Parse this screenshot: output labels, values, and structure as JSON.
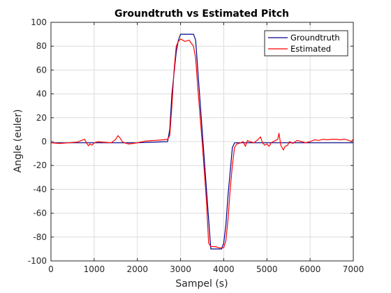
{
  "chart_data": {
    "type": "line",
    "title": "Groundtruth vs Estimated Pitch",
    "xlabel": "Sampel (s)",
    "ylabel": "Angle (euler)",
    "xlim": [
      0,
      7000
    ],
    "ylim": [
      -100,
      100
    ],
    "xticks": [
      0,
      1000,
      2000,
      3000,
      4000,
      5000,
      6000,
      7000
    ],
    "yticks": [
      -100,
      -80,
      -60,
      -40,
      -20,
      0,
      20,
      40,
      60,
      80,
      100
    ],
    "grid": true,
    "legend_position": "top-right",
    "series": [
      {
        "name": "Groundtruth",
        "color": "#00008b",
        "x": [
          0,
          700,
          1000,
          1500,
          2000,
          2700,
          2750,
          2800,
          2900,
          2950,
          3000,
          3300,
          3350,
          3400,
          3500,
          3600,
          3700,
          3950,
          4000,
          4050,
          4100,
          4200,
          4250,
          4300,
          5000,
          6000,
          7000
        ],
        "y": [
          -1,
          -1,
          -1,
          -1,
          -1,
          0,
          10,
          40,
          75,
          85,
          90,
          90,
          85,
          60,
          10,
          -40,
          -90,
          -90,
          -85,
          -70,
          -45,
          -5,
          -1,
          -1,
          -1,
          -1,
          -1
        ]
      },
      {
        "name": "Estimated",
        "color": "#ff0000",
        "x": [
          0,
          200,
          400,
          600,
          780,
          820,
          870,
          900,
          950,
          1000,
          1100,
          1200,
          1400,
          1500,
          1550,
          1600,
          1650,
          1700,
          1800,
          1900,
          2000,
          2200,
          2400,
          2600,
          2700,
          2750,
          2800,
          2850,
          2900,
          2950,
          3000,
          3100,
          3200,
          3300,
          3350,
          3400,
          3500,
          3600,
          3650,
          3700,
          3800,
          3900,
          4000,
          4050,
          4100,
          4150,
          4200,
          4250,
          4300,
          4400,
          4450,
          4500,
          4550,
          4600,
          4700,
          4800,
          4850,
          4900,
          4950,
          5000,
          5050,
          5100,
          5150,
          5200,
          5250,
          5280,
          5320,
          5380,
          5420,
          5480,
          5520,
          5600,
          5700,
          5800,
          5900,
          6000,
          6100,
          6200,
          6300,
          6400,
          6500,
          6600,
          6700,
          6800,
          6900,
          6950,
          7000
        ],
        "y": [
          -1,
          -1.5,
          -1,
          -0.5,
          2,
          -1,
          -3.5,
          -2,
          -3,
          -1,
          0,
          -0.5,
          -1,
          2,
          5,
          3,
          0,
          -1,
          -2,
          -1.5,
          -1,
          0.5,
          1,
          1.5,
          2,
          5,
          30,
          60,
          80,
          84,
          86,
          84,
          85,
          80,
          70,
          45,
          0,
          -50,
          -85,
          -88,
          -88,
          -89,
          -89,
          -83,
          -65,
          -40,
          -20,
          -5,
          -2,
          -1,
          0,
          -4,
          1,
          0,
          -1,
          2,
          4,
          -1,
          -3,
          -2,
          -4,
          -1,
          0,
          1,
          2,
          7,
          -3,
          -7,
          -4,
          -3,
          0,
          -1.5,
          1,
          0,
          -1,
          0,
          1.5,
          1,
          2,
          1.5,
          2,
          2,
          1.5,
          2,
          1,
          0,
          2
        ]
      }
    ]
  }
}
